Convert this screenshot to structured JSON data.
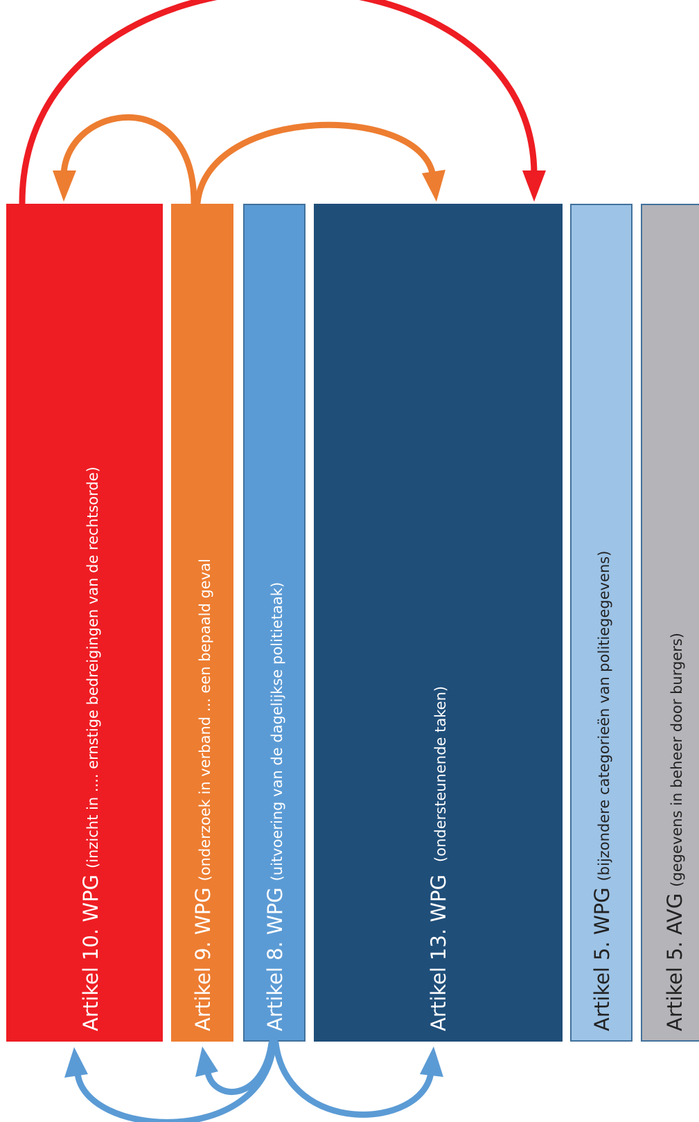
{
  "columns": [
    {
      "id": "art10",
      "main": "Artikel 10. WPG",
      "sub": "(inzicht in .... ernstige bedreigingen van de rechtsorde)",
      "fill": "#EE1D23",
      "stroke": "#EE1D23",
      "text_color": "#FFFFFF"
    },
    {
      "id": "art9",
      "main": "Artikel 9. WPG",
      "sub": "(onderzoek in verband ... een bepaald geval",
      "fill": "#ED7D31",
      "stroke": "#ED7D31",
      "text_color": "#FFFFFF"
    },
    {
      "id": "art8",
      "main": "Artikel 8. WPG",
      "sub": "(uitvoering van de dagelijkse politietaak)",
      "fill": "#5B9BD5",
      "stroke": "#41719C",
      "text_color": "#FFFFFF"
    },
    {
      "id": "art13",
      "main": "Artikel 13. WPG",
      "sub": "(ondersteunende taken)",
      "fill": "#1F4E79",
      "stroke": "#1F4E79",
      "text_color": "#FFFFFF"
    },
    {
      "id": "art5wpg",
      "main": "Artikel 5. WPG",
      "sub": "(bijzondere categorieën van politiegegevens)",
      "fill": "#9DC3E6",
      "stroke": "#41719C",
      "text_color": "#222222"
    },
    {
      "id": "art5avg",
      "main": "Artikel 5. AVG",
      "sub": "(gegevens in beheer door burgers)",
      "fill": "#B4B4B9",
      "stroke": "#41719C",
      "text_color": "#222222"
    }
  ],
  "arrows": [
    {
      "id": "red-10-to-13",
      "color": "#EE1D23",
      "from": "art10",
      "to": "art13"
    },
    {
      "id": "orange-9-to-10",
      "color": "#ED7D31",
      "from": "art9",
      "to": "art10"
    },
    {
      "id": "orange-9-to-13",
      "color": "#ED7D31",
      "from": "art9",
      "to": "art13"
    },
    {
      "id": "blue-8-to-10",
      "color": "#5B9BD5",
      "from": "art8",
      "to": "art10"
    },
    {
      "id": "blue-8-to-9",
      "color": "#5B9BD5",
      "from": "art8",
      "to": "art9"
    },
    {
      "id": "blue-8-to-13",
      "color": "#5B9BD5",
      "from": "art8",
      "to": "art13"
    }
  ]
}
